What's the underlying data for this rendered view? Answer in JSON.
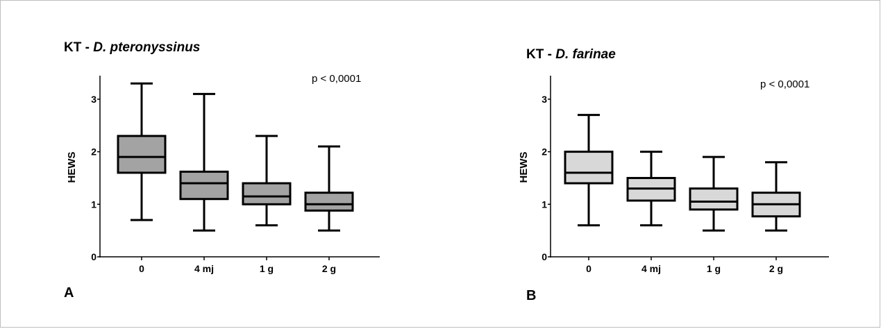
{
  "chart_data": [
    {
      "type": "box",
      "panel_letter": "A",
      "title_prefix": "KT - ",
      "title_species": "D. pteronyssinus",
      "annotation": "p < 0,0001",
      "ylabel": "HEWS",
      "xlabel": "",
      "ylim": [
        0,
        3.5
      ],
      "yticks": [
        0,
        1,
        2,
        3
      ],
      "box_color": "#a3a3a3",
      "categories": [
        "0",
        "4 mj",
        "1 g",
        "2 g"
      ],
      "boxes": [
        {
          "min": 0.7,
          "q1": 1.6,
          "median": 1.9,
          "q3": 2.3,
          "max": 3.3
        },
        {
          "min": 0.5,
          "q1": 1.1,
          "median": 1.4,
          "q3": 1.62,
          "max": 3.1
        },
        {
          "min": 0.6,
          "q1": 1.0,
          "median": 1.15,
          "q3": 1.4,
          "max": 2.3
        },
        {
          "min": 0.5,
          "q1": 0.88,
          "median": 1.0,
          "q3": 1.22,
          "max": 2.1
        }
      ]
    },
    {
      "type": "box",
      "panel_letter": "B",
      "title_prefix": "KT - ",
      "title_species": "D. farinae",
      "annotation": "p < 0,0001",
      "ylabel": "HEWS",
      "xlabel": "",
      "ylim": [
        0,
        3.5
      ],
      "yticks": [
        0,
        1,
        2,
        3
      ],
      "box_color": "#d8d8d8",
      "categories": [
        "0",
        "4 mj",
        "1 g",
        "2 g"
      ],
      "boxes": [
        {
          "min": 0.6,
          "q1": 1.4,
          "median": 1.6,
          "q3": 2.0,
          "max": 2.7
        },
        {
          "min": 0.6,
          "q1": 1.07,
          "median": 1.3,
          "q3": 1.5,
          "max": 2.0
        },
        {
          "min": 0.5,
          "q1": 0.9,
          "median": 1.05,
          "q3": 1.3,
          "max": 1.9
        },
        {
          "min": 0.5,
          "q1": 0.77,
          "median": 1.0,
          "q3": 1.22,
          "max": 1.8
        }
      ]
    }
  ]
}
